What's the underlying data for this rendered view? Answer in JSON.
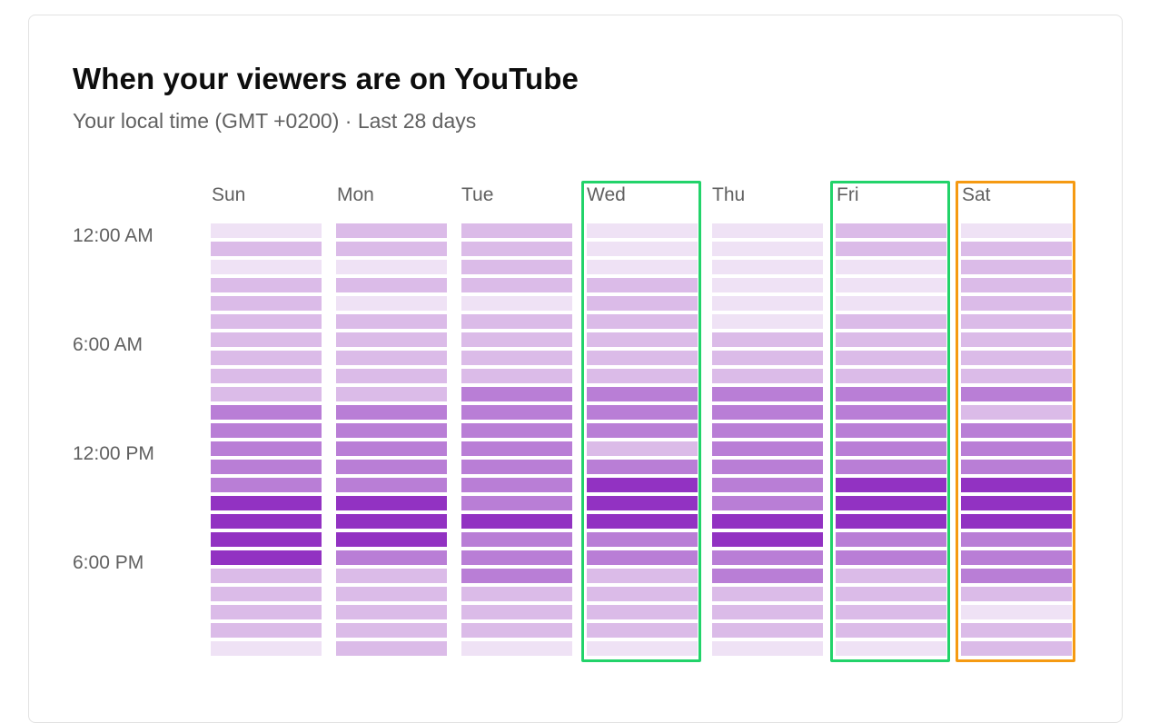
{
  "card": {
    "title": "When your viewers are on YouTube",
    "subtitle": "Your local time (GMT +0200) · Last 28 days"
  },
  "time_labels": [
    "12:00 AM",
    "6:00 AM",
    "12:00 PM",
    "6:00 PM"
  ],
  "days": [
    "Sun",
    "Mon",
    "Tue",
    "Wed",
    "Thu",
    "Fri",
    "Sat"
  ],
  "highlights": [
    {
      "day": "Wed",
      "color": "#22d36a"
    },
    {
      "day": "Fri",
      "color": "#22d36a"
    },
    {
      "day": "Sat",
      "color": "#f59a12"
    }
  ],
  "colors": {
    "level_1": "#efe2f5",
    "level_2": "#dbbbe8",
    "level_3": "#b97ed6",
    "level_4": "#9232c2"
  },
  "chart_data": {
    "type": "heatmap",
    "title": "When your viewers are on YouTube",
    "subtitle": "Your local time (GMT +0200) · Last 28 days",
    "columns": [
      "Sun",
      "Mon",
      "Tue",
      "Wed",
      "Thu",
      "Fri",
      "Sat"
    ],
    "row_labels": [
      "12:00 AM",
      "6:00 AM",
      "12:00 PM",
      "6:00 PM"
    ],
    "rows": 24,
    "levels": [
      [
        1,
        2,
        1,
        2,
        2,
        2,
        2,
        2,
        2,
        2,
        3,
        3,
        3,
        3,
        3,
        4,
        4,
        4,
        4,
        2,
        2,
        2,
        2,
        1
      ],
      [
        2,
        2,
        1,
        2,
        1,
        2,
        2,
        2,
        2,
        2,
        3,
        3,
        3,
        3,
        3,
        4,
        4,
        4,
        3,
        2,
        2,
        2,
        2,
        2
      ],
      [
        2,
        2,
        2,
        2,
        1,
        2,
        2,
        2,
        2,
        3,
        3,
        3,
        3,
        3,
        3,
        3,
        4,
        3,
        3,
        3,
        2,
        2,
        2,
        1
      ],
      [
        1,
        1,
        1,
        2,
        2,
        2,
        2,
        2,
        2,
        3,
        3,
        3,
        2,
        3,
        4,
        4,
        4,
        3,
        3,
        2,
        2,
        2,
        2,
        1
      ],
      [
        1,
        1,
        1,
        1,
        1,
        1,
        2,
        2,
        2,
        3,
        3,
        3,
        3,
        3,
        3,
        3,
        4,
        4,
        3,
        3,
        2,
        2,
        2,
        1
      ],
      [
        2,
        2,
        1,
        1,
        1,
        2,
        2,
        2,
        2,
        3,
        3,
        3,
        3,
        3,
        4,
        4,
        4,
        3,
        3,
        2,
        2,
        2,
        2,
        1
      ],
      [
        1,
        2,
        2,
        2,
        2,
        2,
        2,
        2,
        2,
        3,
        2,
        3,
        3,
        3,
        4,
        4,
        4,
        3,
        3,
        3,
        2,
        1,
        2,
        2
      ]
    ]
  }
}
